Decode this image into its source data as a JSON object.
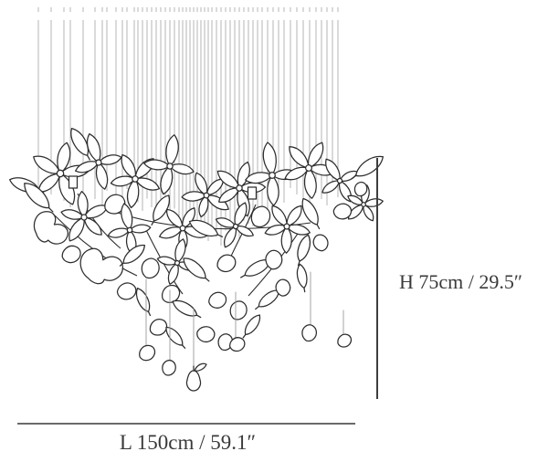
{
  "diagram": {
    "title": "floral-chandelier-dimension-diagram",
    "illustration": {
      "name": "floral-chandelier-line-drawing",
      "wire_color": "#b5b5b5",
      "outline_color": "#2d2d2d",
      "string_color": "#9a9a9a",
      "fill_color": "#ffffff"
    },
    "dimensions": {
      "height_label": "H 75cm / 29.5″",
      "length_label": "L 150cm / 59.1″",
      "height_line_color": "#3d3d3d",
      "length_line_color": "#6a6a6a"
    }
  }
}
